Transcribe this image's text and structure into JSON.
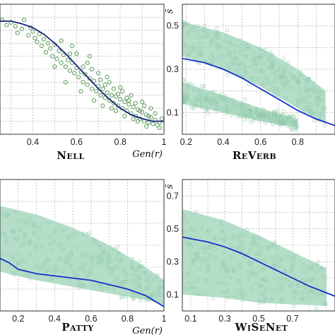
{
  "chart_data": [
    {
      "type": "scatter",
      "title": "Nell",
      "xlabel": "Gen(r)",
      "ylabel": "",
      "xlim": [
        0.25,
        1.0
      ],
      "ylim": [
        0.0,
        1.0
      ],
      "xticks": [
        0.4,
        0.6,
        0.8,
        1
      ],
      "yticks": [],
      "grid": true,
      "points_style": "open-circle",
      "points_color": "#5a9a5a",
      "curve_color": "#1a237e",
      "points": [
        [
          0.26,
          0.88
        ],
        [
          0.28,
          0.84
        ],
        [
          0.3,
          0.86
        ],
        [
          0.32,
          0.83
        ],
        [
          0.33,
          0.78
        ],
        [
          0.35,
          0.81
        ],
        [
          0.36,
          0.88
        ],
        [
          0.38,
          0.76
        ],
        [
          0.39,
          0.82
        ],
        [
          0.4,
          0.79
        ],
        [
          0.41,
          0.74
        ],
        [
          0.42,
          0.71
        ],
        [
          0.43,
          0.77
        ],
        [
          0.44,
          0.68
        ],
        [
          0.45,
          0.73
        ],
        [
          0.46,
          0.63
        ],
        [
          0.47,
          0.7
        ],
        [
          0.48,
          0.66
        ],
        [
          0.49,
          0.6
        ],
        [
          0.5,
          0.69
        ],
        [
          0.51,
          0.58
        ],
        [
          0.52,
          0.64
        ],
        [
          0.53,
          0.55
        ],
        [
          0.54,
          0.61
        ],
        [
          0.55,
          0.52
        ],
        [
          0.56,
          0.57
        ],
        [
          0.57,
          0.49
        ],
        [
          0.58,
          0.55
        ],
        [
          0.59,
          0.47
        ],
        [
          0.6,
          0.51
        ],
        [
          0.61,
          0.44
        ],
        [
          0.62,
          0.48
        ],
        [
          0.63,
          0.4
        ],
        [
          0.64,
          0.46
        ],
        [
          0.65,
          0.38
        ],
        [
          0.66,
          0.43
        ],
        [
          0.67,
          0.35
        ],
        [
          0.68,
          0.41
        ],
        [
          0.69,
          0.33
        ],
        [
          0.7,
          0.37
        ],
        [
          0.71,
          0.3
        ],
        [
          0.72,
          0.35
        ],
        [
          0.73,
          0.28
        ],
        [
          0.74,
          0.32
        ],
        [
          0.75,
          0.26
        ],
        [
          0.76,
          0.3
        ],
        [
          0.77,
          0.24
        ],
        [
          0.78,
          0.29
        ],
        [
          0.79,
          0.22
        ],
        [
          0.8,
          0.27
        ],
        [
          0.81,
          0.2
        ],
        [
          0.82,
          0.25
        ],
        [
          0.83,
          0.18
        ],
        [
          0.84,
          0.23
        ],
        [
          0.85,
          0.16
        ],
        [
          0.86,
          0.21
        ],
        [
          0.87,
          0.14
        ],
        [
          0.88,
          0.19
        ],
        [
          0.89,
          0.12
        ],
        [
          0.9,
          0.17
        ],
        [
          0.91,
          0.1
        ],
        [
          0.92,
          0.15
        ],
        [
          0.93,
          0.09
        ],
        [
          0.94,
          0.13
        ],
        [
          0.95,
          0.08
        ],
        [
          0.96,
          0.11
        ],
        [
          0.97,
          0.07
        ],
        [
          0.98,
          0.09
        ],
        [
          0.6,
          0.62
        ],
        [
          0.65,
          0.55
        ],
        [
          0.7,
          0.47
        ],
        [
          0.72,
          0.22
        ],
        [
          0.75,
          0.4
        ],
        [
          0.78,
          0.18
        ],
        [
          0.8,
          0.36
        ],
        [
          0.82,
          0.14
        ],
        [
          0.85,
          0.3
        ],
        [
          0.88,
          0.1
        ],
        [
          0.9,
          0.25
        ],
        [
          0.55,
          0.4
        ],
        [
          0.58,
          0.68
        ],
        [
          0.62,
          0.33
        ],
        [
          0.66,
          0.6
        ],
        [
          0.68,
          0.26
        ],
        [
          0.74,
          0.44
        ],
        [
          0.77,
          0.35
        ],
        [
          0.83,
          0.28
        ],
        [
          0.86,
          0.12
        ],
        [
          0.92,
          0.06
        ],
        [
          0.94,
          0.2
        ],
        [
          0.5,
          0.52
        ],
        [
          0.53,
          0.72
        ],
        [
          0.57,
          0.62
        ],
        [
          0.63,
          0.52
        ],
        [
          0.67,
          0.5
        ],
        [
          0.71,
          0.42
        ],
        [
          0.73,
          0.38
        ],
        [
          0.76,
          0.2
        ],
        [
          0.79,
          0.31
        ],
        [
          0.81,
          0.33
        ],
        [
          0.84,
          0.26
        ],
        [
          0.87,
          0.24
        ],
        [
          0.89,
          0.18
        ],
        [
          0.91,
          0.22
        ],
        [
          0.93,
          0.14
        ],
        [
          0.96,
          0.16
        ],
        [
          0.98,
          0.05
        ],
        [
          0.99,
          0.12
        ]
      ],
      "curve": [
        [
          0.25,
          0.87
        ],
        [
          0.3,
          0.87
        ],
        [
          0.35,
          0.85
        ],
        [
          0.4,
          0.82
        ],
        [
          0.45,
          0.77
        ],
        [
          0.5,
          0.7
        ],
        [
          0.55,
          0.62
        ],
        [
          0.6,
          0.53
        ],
        [
          0.65,
          0.44
        ],
        [
          0.7,
          0.35
        ],
        [
          0.75,
          0.27
        ],
        [
          0.8,
          0.2
        ],
        [
          0.85,
          0.15
        ],
        [
          0.9,
          0.12
        ],
        [
          0.95,
          0.1
        ],
        [
          1.0,
          0.1
        ]
      ]
    },
    {
      "type": "scatter",
      "title": "ReVerb",
      "xlabel": "",
      "ylabel": "s̄",
      "xlim": [
        0.18,
        1.0
      ],
      "ylim": [
        0.0,
        0.6
      ],
      "xticks": [
        0.2,
        0.4,
        0.6,
        0.8
      ],
      "yticks": [
        0.1,
        0.3,
        0.5
      ],
      "grid": true,
      "points_style": "dense-cloud",
      "points_color": "#a8d8c0",
      "curve_color": "#1530c8",
      "bands": [
        {
          "upper": [
            [
              0.18,
              0.52
            ],
            [
              0.4,
              0.47
            ],
            [
              0.6,
              0.4
            ],
            [
              0.8,
              0.3
            ],
            [
              0.95,
              0.2
            ]
          ],
          "lower": [
            [
              0.18,
              0.36
            ],
            [
              0.4,
              0.3
            ],
            [
              0.6,
              0.22
            ],
            [
              0.8,
              0.12
            ],
            [
              0.95,
              0.05
            ]
          ]
        },
        {
          "upper": [
            [
              0.18,
              0.24
            ],
            [
              0.4,
              0.18
            ],
            [
              0.6,
              0.12
            ],
            [
              0.8,
              0.07
            ]
          ],
          "lower": [
            [
              0.18,
              0.14
            ],
            [
              0.4,
              0.1
            ],
            [
              0.6,
              0.06
            ],
            [
              0.8,
              0.03
            ]
          ]
        }
      ],
      "curve": [
        [
          0.18,
          0.35
        ],
        [
          0.3,
          0.33
        ],
        [
          0.4,
          0.3
        ],
        [
          0.5,
          0.26
        ],
        [
          0.6,
          0.21
        ],
        [
          0.7,
          0.16
        ],
        [
          0.8,
          0.11
        ],
        [
          0.9,
          0.07
        ],
        [
          1.0,
          0.04
        ]
      ]
    },
    {
      "type": "scatter",
      "title": "Patty",
      "xlabel": "Gen(r)",
      "ylabel": "",
      "xlim": [
        0.1,
        1.0
      ],
      "ylim": [
        0.0,
        0.6
      ],
      "xticks": [
        0.2,
        0.4,
        0.6,
        0.8,
        1
      ],
      "yticks": [],
      "grid": true,
      "points_style": "dense-cloud",
      "points_color": "#a8d8c0",
      "curve_color": "#1530c8",
      "bands": [
        {
          "upper": [
            [
              0.1,
              0.48
            ],
            [
              0.3,
              0.44
            ],
            [
              0.5,
              0.38
            ],
            [
              0.7,
              0.3
            ],
            [
              0.9,
              0.2
            ],
            [
              1.0,
              0.14
            ]
          ],
          "lower": [
            [
              0.1,
              0.18
            ],
            [
              0.3,
              0.14
            ],
            [
              0.5,
              0.11
            ],
            [
              0.7,
              0.08
            ],
            [
              0.9,
              0.05
            ],
            [
              1.0,
              0.03
            ]
          ]
        }
      ],
      "curve": [
        [
          0.1,
          0.24
        ],
        [
          0.15,
          0.22
        ],
        [
          0.2,
          0.19
        ],
        [
          0.3,
          0.17
        ],
        [
          0.4,
          0.16
        ],
        [
          0.5,
          0.15
        ],
        [
          0.6,
          0.14
        ],
        [
          0.7,
          0.12
        ],
        [
          0.8,
          0.1
        ],
        [
          0.9,
          0.07
        ],
        [
          1.0,
          0.02
        ]
      ]
    },
    {
      "type": "scatter",
      "title": "WiSeNet",
      "xlabel": "",
      "ylabel": "s̄",
      "xlim": [
        0.05,
        0.95
      ],
      "ylim": [
        0.0,
        0.8
      ],
      "xticks": [
        0.1,
        0.3,
        0.5,
        0.7
      ],
      "yticks": [
        0.1,
        0.3,
        0.5,
        0.7
      ],
      "grid": true,
      "points_style": "dense-cloud",
      "points_color": "#a8d8c0",
      "curve_color": "#1530c8",
      "bands": [
        {
          "upper": [
            [
              0.05,
              0.62
            ],
            [
              0.3,
              0.55
            ],
            [
              0.5,
              0.46
            ],
            [
              0.7,
              0.36
            ],
            [
              0.9,
              0.26
            ]
          ],
          "lower": [
            [
              0.05,
              0.1
            ],
            [
              0.3,
              0.08
            ],
            [
              0.5,
              0.05
            ],
            [
              0.7,
              0.04
            ],
            [
              0.9,
              0.03
            ]
          ]
        }
      ],
      "curve": [
        [
          0.05,
          0.45
        ],
        [
          0.1,
          0.44
        ],
        [
          0.2,
          0.42
        ],
        [
          0.3,
          0.39
        ],
        [
          0.4,
          0.35
        ],
        [
          0.5,
          0.3
        ],
        [
          0.6,
          0.25
        ],
        [
          0.7,
          0.2
        ],
        [
          0.8,
          0.15
        ],
        [
          0.9,
          0.11
        ],
        [
          0.95,
          0.09
        ]
      ]
    }
  ]
}
